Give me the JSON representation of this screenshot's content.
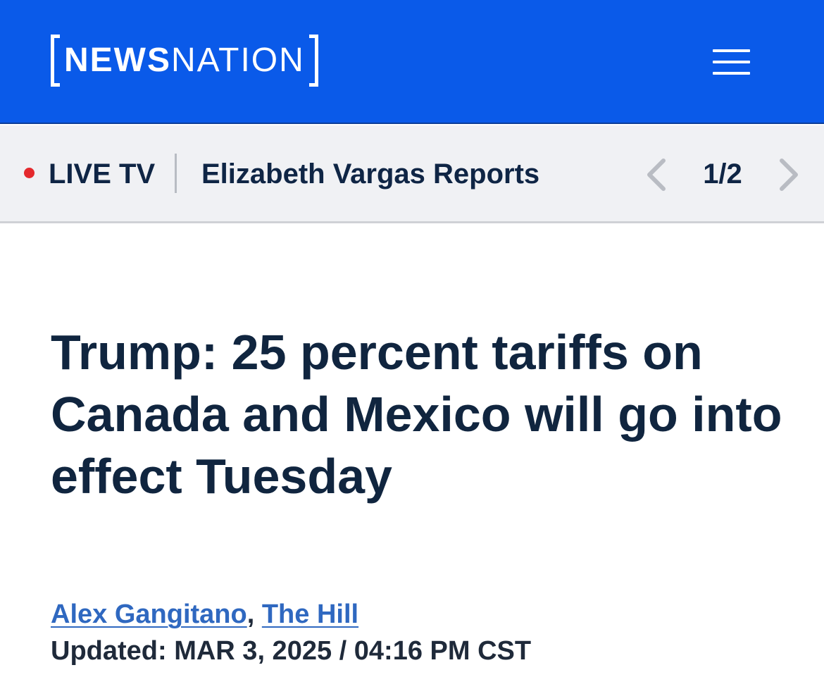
{
  "header": {
    "logo": {
      "news": "NEWS",
      "nation": "NATION"
    },
    "menu_icon": "hamburger-menu-icon",
    "background_color": "#0a5ae9"
  },
  "live_bar": {
    "indicator_color": "#e4292d",
    "live_label": "LIVE TV",
    "show_title": "Elizabeth Vargas Reports",
    "pager": "1/2",
    "prev_icon": "chevron-left-icon",
    "next_icon": "chevron-right-icon"
  },
  "article": {
    "headline": "Trump: 25 percent tariffs on Canada and Mexico will go into effect Tuesday",
    "author": "Alex Gangitano",
    "separator": ",",
    "source": "The Hill",
    "updated": "Updated: MAR 3, 2025 / 04:16 PM CST"
  }
}
